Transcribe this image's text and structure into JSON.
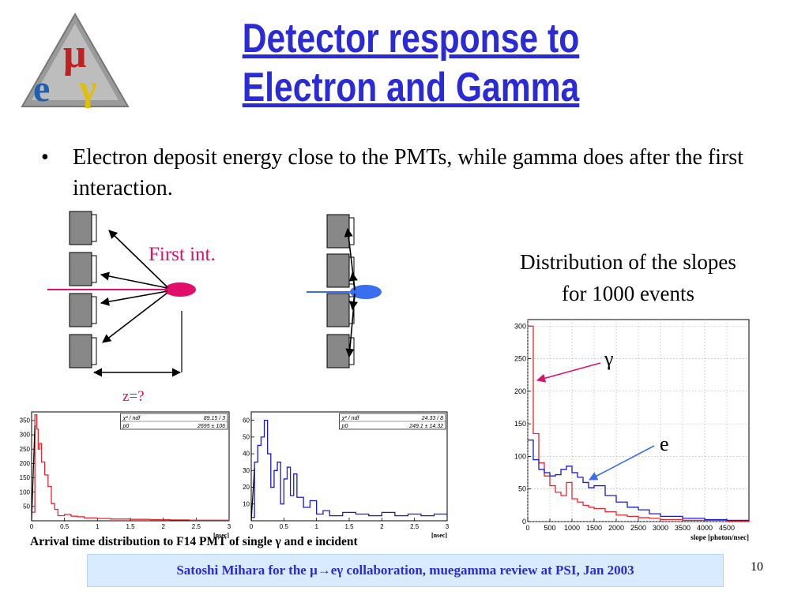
{
  "title": {
    "line1": "Detector response to",
    "line2": "Electron and Gamma"
  },
  "bullet": {
    "symbol": "•",
    "text": "Electron deposit energy close to the PMTs, while gamma does after the first interaction."
  },
  "diagram": {
    "first_int_label": "First int.",
    "z_label": "z=?"
  },
  "slopes": {
    "title_line1": "Distribution of the slopes",
    "title_line2": "for 1000 events",
    "gamma_annotation": "γ",
    "e_annotation": "e"
  },
  "colors": {
    "title": "#2a2ad6",
    "accent_pink": "#e0106a",
    "electron_blue": "#3a6ef0",
    "footer_bg": "#d9ecff",
    "hist_red": "#e8282e",
    "hist_blue": "#1a1ad0"
  },
  "caption": "Arrival time distribution to F14 PMT of single γ and e incident",
  "footer": "Satoshi Mihara for the μ→eγ collaboration, muegamma review at PSI, Jan 2003",
  "page_number": "10",
  "chart_data": [
    {
      "type": "line",
      "title": "",
      "xlabel": "[nsec]",
      "ylabel": "",
      "xlim": [
        0,
        3
      ],
      "ylim": [
        0,
        380
      ],
      "x_ticks": [
        "0",
        "0.5",
        "1",
        "1.5",
        "2",
        "2.5",
        "3"
      ],
      "y_ticks": [
        "50",
        "100",
        "150",
        "200",
        "250",
        "300",
        "350"
      ],
      "stats_box": {
        "chi2_label": "χ² / ndf",
        "chi2_value": "89.15 / 3",
        "p0_label": "p0",
        "p0_value": "2695 ± 106"
      },
      "series": [
        {
          "color": "#e8282e",
          "x": [
            0.0,
            0.05,
            0.08,
            0.1,
            0.12,
            0.15,
            0.2,
            0.25,
            0.3,
            0.35,
            0.4,
            0.5,
            0.6,
            0.7,
            0.8,
            1.0,
            1.2,
            1.5,
            1.8,
            2.1,
            2.4,
            2.7,
            3.0
          ],
          "y": [
            30,
            370,
            320,
            250,
            270,
            205,
            160,
            120,
            60,
            40,
            18,
            22,
            16,
            14,
            10,
            8,
            6,
            5,
            4,
            3,
            2,
            2,
            1
          ]
        }
      ]
    },
    {
      "type": "line",
      "title": "",
      "xlabel": "[nsec]",
      "ylabel": "",
      "xlim": [
        0,
        3
      ],
      "ylim": [
        0,
        65
      ],
      "x_ticks": [
        "0",
        "0.5",
        "1",
        "1.5",
        "2",
        "2.5",
        "3"
      ],
      "y_ticks": [
        "10",
        "20",
        "30",
        "40",
        "50",
        "60"
      ],
      "stats_box": {
        "chi2_label": "χ² / ndf",
        "chi2_value": "24.33 / 8",
        "p0_label": "p0",
        "p0_value": "249.1 ± 14.32"
      },
      "series": [
        {
          "color": "#1a1ad0",
          "x": [
            0.0,
            0.05,
            0.1,
            0.15,
            0.2,
            0.25,
            0.3,
            0.35,
            0.4,
            0.45,
            0.5,
            0.55,
            0.6,
            0.65,
            0.7,
            0.8,
            0.9,
            1.0,
            1.1,
            1.2,
            1.4,
            1.6,
            1.8,
            2.0,
            2.2,
            2.4,
            2.6,
            2.8,
            3.0
          ],
          "y": [
            2,
            35,
            45,
            50,
            60,
            40,
            20,
            30,
            35,
            10,
            25,
            32,
            15,
            28,
            14,
            8,
            12,
            4,
            6,
            3,
            5,
            4,
            3,
            5,
            3,
            4,
            3,
            4,
            2
          ]
        }
      ]
    },
    {
      "type": "line",
      "title": "",
      "xlabel": "slope [photon/nsec]",
      "ylabel": "",
      "xlim": [
        0,
        5000
      ],
      "ylim": [
        0,
        310
      ],
      "x_ticks": [
        "0",
        "500",
        "1000",
        "1500",
        "2000",
        "2500",
        "3000",
        "3500",
        "4000",
        "4500"
      ],
      "y_ticks": [
        "0",
        "50",
        "100",
        "150",
        "200",
        "250",
        "300"
      ],
      "series": [
        {
          "color": "#e8282e",
          "x": [
            0,
            125,
            250,
            375,
            500,
            625,
            750,
            875,
            1000,
            1125,
            1250,
            1375,
            1500,
            1750,
            2000,
            2250,
            2500,
            2750,
            3000,
            3500,
            4000,
            4500,
            5000
          ],
          "y": [
            300,
            135,
            90,
            70,
            55,
            45,
            40,
            60,
            35,
            30,
            25,
            22,
            20,
            15,
            10,
            8,
            6,
            5,
            3,
            2,
            2,
            1,
            0
          ]
        },
        {
          "color": "#1a1ad0",
          "x": [
            0,
            125,
            250,
            375,
            500,
            625,
            750,
            875,
            1000,
            1125,
            1250,
            1375,
            1500,
            1750,
            2000,
            2250,
            2500,
            2750,
            3000,
            3500,
            4000,
            4500,
            5000
          ],
          "y": [
            125,
            95,
            80,
            75,
            70,
            72,
            80,
            85,
            75,
            68,
            60,
            52,
            55,
            40,
            30,
            22,
            18,
            12,
            8,
            5,
            3,
            2,
            1
          ]
        }
      ]
    }
  ]
}
